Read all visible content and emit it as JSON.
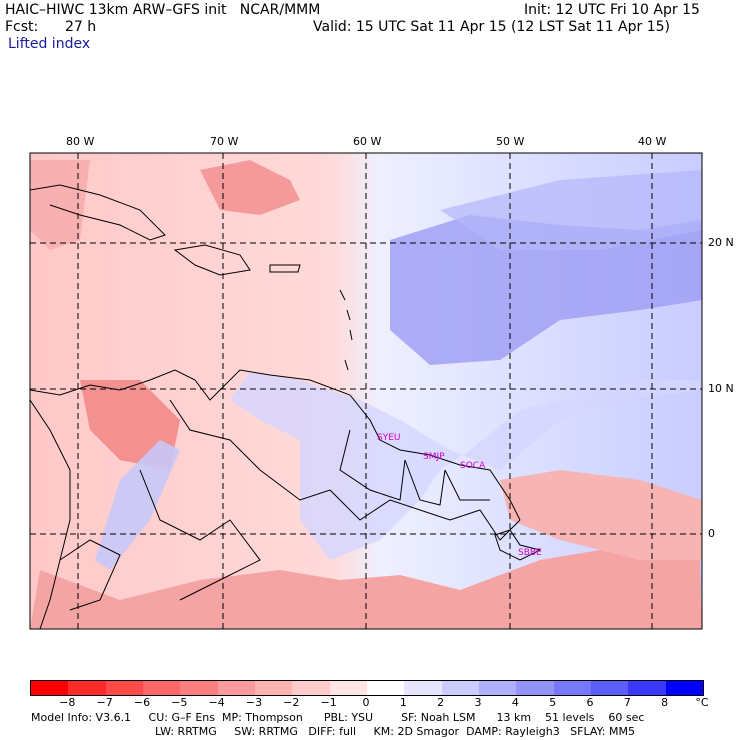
{
  "header": {
    "model": "HAIC–HIWC 13km ARW–GFS init   NCAR/MMM",
    "init": "Init: 12 UTC Fri 10 Apr 15",
    "fcst_label": "Fcst:",
    "fcst_value": "27 h",
    "valid": "Valid: 15 UTC Sat 11 Apr 15 (12 LST Sat 11 Apr 15)",
    "field": "Lifted index"
  },
  "map": {
    "longitude_labels": [
      "80 W",
      "70 W",
      "60 W",
      "50 W",
      "40 W"
    ],
    "latitude_labels": [
      "20 N",
      "10 N",
      "0"
    ],
    "stations": [
      "SYEU",
      "SMJP",
      "SOCA",
      "SBBE"
    ]
  },
  "colorbar": {
    "ticks": [
      "−8",
      "−7",
      "−6",
      "−5",
      "−4",
      "−3",
      "−2",
      "−1",
      "0",
      "1",
      "2",
      "3",
      "4",
      "5",
      "6",
      "7",
      "8"
    ],
    "unit": "°C",
    "colors": [
      "#ff0000",
      "#ff2a2a",
      "#ff4a4a",
      "#ff6666",
      "#ff8080",
      "#ff9a9a",
      "#ffb2b2",
      "#ffcccc",
      "#ffe6e6",
      "#ffffff",
      "#e6e6ff",
      "#ccccff",
      "#b0b0ff",
      "#9494ff",
      "#7878ff",
      "#5c5cff",
      "#3a3aff",
      "#0000ff"
    ]
  },
  "footer": {
    "line1": "Model Info: V3.6.1     CU: G–F Ens  MP: Thompson      PBL: YSU        SF: Noah LSM      13 km    51 levels    60 sec",
    "line2": "LW: RRTMG     SW: RRTMG   DIFF: full     KM: 2D Smagor  DAMP: Rayleigh3   SFLAY: MM5"
  }
}
